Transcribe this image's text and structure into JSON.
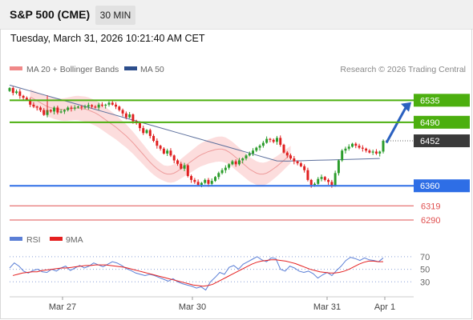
{
  "header": {
    "title": "S&P 500 (CME)",
    "timeframe": "30 MIN"
  },
  "datetime": "Tuesday, March 31, 2026 10:21:40 AM CET",
  "legend": {
    "ma20_label": "MA 20 + Bollinger Bands",
    "ma50_label": "MA 50",
    "credit": "Research © 2026 Trading Central"
  },
  "rsi_legend": {
    "rsi_label": "RSI",
    "ma_label": "9MA"
  },
  "colors": {
    "resistance": "#4caf0f",
    "support": "#2e6ee6",
    "target": "#e05050",
    "last": "#3a3a3a",
    "bollinger": "#fbd4d4",
    "ma20": "#ee9c9c",
    "ma50": "#5c6f9c",
    "up": "#2b9c2b",
    "down": "#e02020",
    "rsi": "#5b7fd6",
    "rsi_ma": "#e52020",
    "arrow": "#2a60c0"
  },
  "chart_data": {
    "type": "candlestick",
    "x_ticks": [
      "Mar 27",
      "Mar 30",
      "Mar 31",
      "Apr 1"
    ],
    "y_range": [
      6272,
      6583
    ],
    "levels": [
      {
        "value": 6535,
        "label": "6535",
        "kind": "resistance"
      },
      {
        "value": 6490,
        "label": "6490",
        "kind": "resistance"
      },
      {
        "value": 6452,
        "label": "6452",
        "kind": "last"
      },
      {
        "value": 6360,
        "label": "6360",
        "kind": "support"
      },
      {
        "value": 6319,
        "label": "6319",
        "kind": "target"
      },
      {
        "value": 6290,
        "label": "6290",
        "kind": "target"
      }
    ],
    "last_price": 6452,
    "forecast_arrow": {
      "from": 6448,
      "to": 6531
    },
    "closes": [
      6560,
      6550,
      6553,
      6544,
      6540,
      6536,
      6526,
      6522,
      6520,
      6515,
      6505,
      6515,
      6512,
      6520,
      6510,
      6512,
      6515,
      6520,
      6518,
      6520,
      6522,
      6520,
      6522,
      6525,
      6522,
      6520,
      6526,
      6524,
      6526,
      6530,
      6526,
      6522,
      6515,
      6508,
      6500,
      6506,
      6492,
      6488,
      6478,
      6468,
      6474,
      6462,
      6452,
      6442,
      6436,
      6426,
      6432,
      6422,
      6412,
      6405,
      6395,
      6402,
      6380,
      6372,
      6368,
      6362,
      6366,
      6372,
      6364,
      6370,
      6378,
      6386,
      6392,
      6397,
      6404,
      6410,
      6404,
      6412,
      6416,
      6422,
      6426,
      6432,
      6438,
      6442,
      6448,
      6456,
      6454,
      6450,
      6458,
      6444,
      6428,
      6422,
      6416,
      6410,
      6406,
      6400,
      6392,
      6372,
      6362,
      6364,
      6374,
      6378,
      6372,
      6368,
      6360,
      6386,
      6412,
      6432,
      6436,
      6440,
      6446,
      6442,
      6438,
      6436,
      6432,
      6428,
      6430,
      6426,
      6430,
      6452
    ],
    "ma20": [
      6542,
      6538,
      6534,
      6530,
      6526,
      6522,
      6520,
      6518,
      6517,
      6516,
      6516,
      6517,
      6518,
      6519,
      6519,
      6518,
      6517,
      6515,
      6512,
      6509,
      6505,
      6500,
      6495,
      6490,
      6485,
      6480,
      6474,
      6468,
      6462,
      6455,
      6448,
      6440,
      6432,
      6424,
      6416,
      6408,
      6401,
      6395,
      6390,
      6386,
      6384,
      6384,
      6386,
      6390,
      6395,
      6400,
      6405,
      6410,
      6415,
      6420,
      6424,
      6427,
      6430,
      6432,
      6434,
      6435,
      6435,
      6433,
      6429,
      6424,
      6418,
      6412,
      6406,
      6400,
      6394,
      6390,
      6386,
      6384,
      6384,
      6386,
      6390,
      6395,
      6400,
      6406,
      6412,
      6418,
      6424
    ],
    "ma20_start_index": 6,
    "ma50_range": [
      6566,
      6410
    ],
    "rsi_range": [
      10,
      80
    ],
    "rsi_ticks": [
      70,
      50,
      30
    ],
    "rsi": [
      52,
      60,
      55,
      47,
      44,
      48,
      50,
      46,
      45,
      50,
      47,
      52,
      55,
      48,
      52,
      56,
      52,
      55,
      60,
      57,
      54,
      58,
      62,
      60,
      56,
      51,
      48,
      44,
      42,
      40,
      42,
      40,
      37,
      34,
      31,
      35,
      30,
      27,
      25,
      23,
      20,
      22,
      17,
      30,
      37,
      45,
      42,
      53,
      56,
      50,
      58,
      62,
      66,
      70,
      65,
      62,
      68,
      67,
      50,
      47,
      55,
      52,
      47,
      45,
      47,
      43,
      36,
      41,
      45,
      40,
      48,
      55,
      64,
      69,
      67,
      64,
      68,
      65,
      64,
      62,
      68
    ],
    "rsi_ma": [
      40,
      42,
      44,
      45,
      46,
      46,
      48,
      49,
      50,
      51,
      52,
      52,
      53,
      54,
      55,
      56,
      56,
      57,
      57,
      57,
      56,
      55,
      54,
      53,
      51,
      49,
      47,
      45,
      43,
      41,
      39,
      37,
      35,
      33,
      31,
      29,
      27,
      25,
      24,
      23,
      24,
      26,
      30,
      34,
      38,
      42,
      46,
      50,
      54,
      58,
      61,
      63,
      64,
      65,
      65,
      64,
      63,
      61,
      59,
      56,
      53,
      50,
      48,
      46,
      45,
      44,
      44,
      45,
      47,
      50,
      54,
      58,
      61,
      63,
      63,
      62,
      62
    ]
  }
}
